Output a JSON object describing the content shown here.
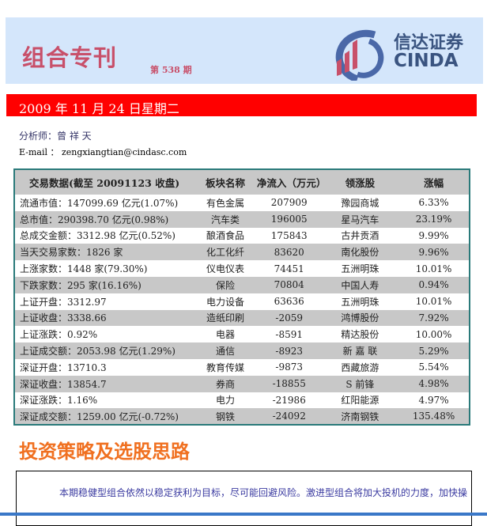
{
  "header": {
    "title": "组合专刊",
    "issue": "第 538 期",
    "logo_cn": "信达证券",
    "logo_en": "CINDA"
  },
  "date": "2009 年 11 月 24 日星期二",
  "analyst": "分析师：曾 祥 天",
  "email": "E-mail ： zengxiangtian@cindasc.com",
  "table": {
    "headers": [
      "交易数据(截至 20091123 收盘)",
      "板块名称",
      "净流入（万元）",
      "领涨股",
      "涨幅"
    ],
    "rows": [
      [
        "流通市值：147099.69 亿元(1.07%)",
        "有色金属",
        "207909",
        "豫园商城",
        "6.33%"
      ],
      [
        "总市值：290398.70 亿元(0.98%)",
        "汽车类",
        "196005",
        "星马汽车",
        "23.19%"
      ],
      [
        "总成交金额：3312.98 亿元(0.52%)",
        "酿酒食品",
        "175843",
        "古井贡酒",
        "9.99%"
      ],
      [
        "当天交易家数：1826 家",
        "化工化纤",
        "83620",
        "南化股份",
        "9.96%"
      ],
      [
        "上涨家数：1448 家(79.30%)",
        "仪电仪表",
        "74451",
        "五洲明珠",
        "10.01%"
      ],
      [
        "下跌家数：295 家(16.16%)",
        "保险",
        "70804",
        "中国人寿",
        "0.94%"
      ],
      [
        "上证开盘：3312.97",
        "电力设备",
        "63636",
        "五洲明珠",
        "10.01%"
      ],
      [
        "上证收盘：3338.66",
        "造纸印刷",
        "-2059",
        "鸿博股份",
        "7.92%"
      ],
      [
        "上证涨跌：0.92%",
        "电器",
        "-8591",
        "精达股份",
        "10.00%"
      ],
      [
        "上证成交额：2053.98 亿元(1.29%)",
        "通信",
        "-8923",
        "新 嘉 联",
        "5.29%"
      ],
      [
        "深证开盘：13710.3",
        "教育传媒",
        "-9873",
        "西藏旅游",
        "5.54%"
      ],
      [
        "深证收盘：13854.7",
        "券商",
        "-18855",
        "S 前锋",
        "4.98%"
      ],
      [
        "深证涨跌：1.16%",
        "电力",
        "-21986",
        "红阳能源",
        "4.97%"
      ],
      [
        "深证成交额：1259.00 亿元(-0.72%)",
        "钢铁",
        "-24092",
        "济南钢铁",
        "135.48%"
      ]
    ]
  },
  "section": {
    "title": "投资策略及选股思路",
    "paragraph": "本期稳健型组合依然以稳定获利为目标，尽可能回避风险。激进型组合将加大投机的力度，加快操"
  },
  "colors": {
    "band": "#d4e6fb",
    "title": "#c8506a",
    "date_bar": "#ff0000",
    "section_title": "#f07020",
    "table_border": "#2a7a7a"
  }
}
